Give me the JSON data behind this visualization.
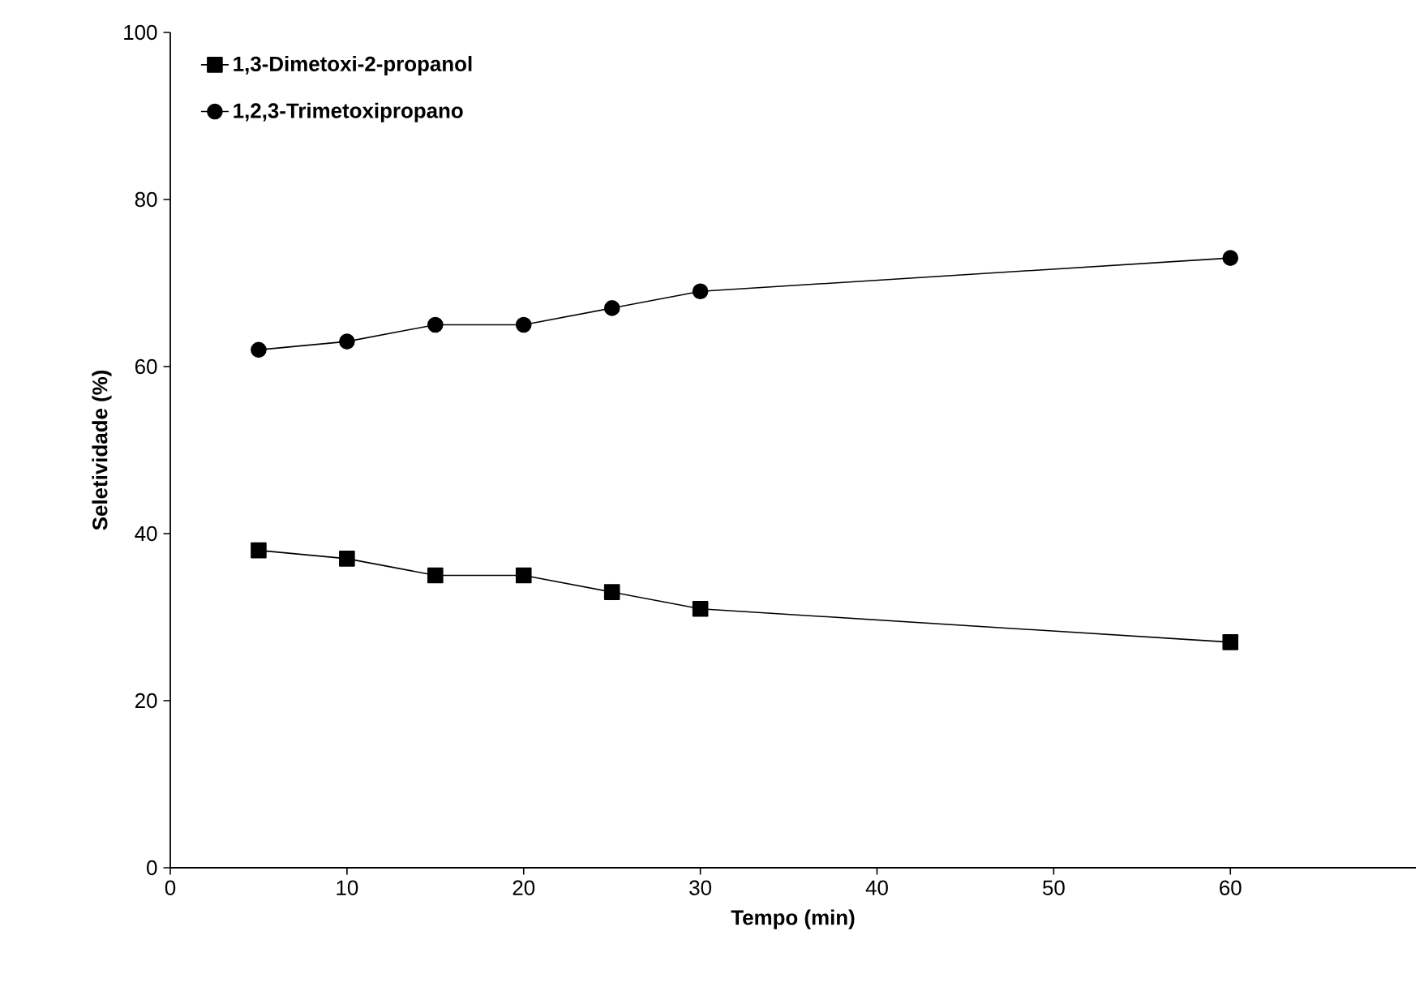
{
  "chart_data": {
    "type": "line",
    "xlabel": "Tempo (min)",
    "ylabel": "Seletividade (%)",
    "x": [
      5,
      10,
      15,
      20,
      25,
      30,
      60
    ],
    "series": [
      {
        "name": "1,3-Dimetoxi-2-propanol",
        "color": "#000000",
        "marker": "square",
        "values": [
          38,
          37,
          35,
          35,
          33,
          31,
          27
        ]
      },
      {
        "name": "1,2,3-Trimetoxipropano",
        "color": "#000000",
        "marker": "circle",
        "values": [
          62,
          63,
          65,
          65,
          67,
          69,
          73
        ]
      }
    ],
    "xlim": [
      0,
      70.5
    ],
    "ylim": [
      0,
      100
    ],
    "xticks": [
      0,
      10,
      20,
      30,
      40,
      50,
      60
    ],
    "yticks": [
      0,
      20,
      40,
      60,
      80,
      100
    ],
    "legend": "top left",
    "grid": false,
    "line_style": "solid"
  }
}
